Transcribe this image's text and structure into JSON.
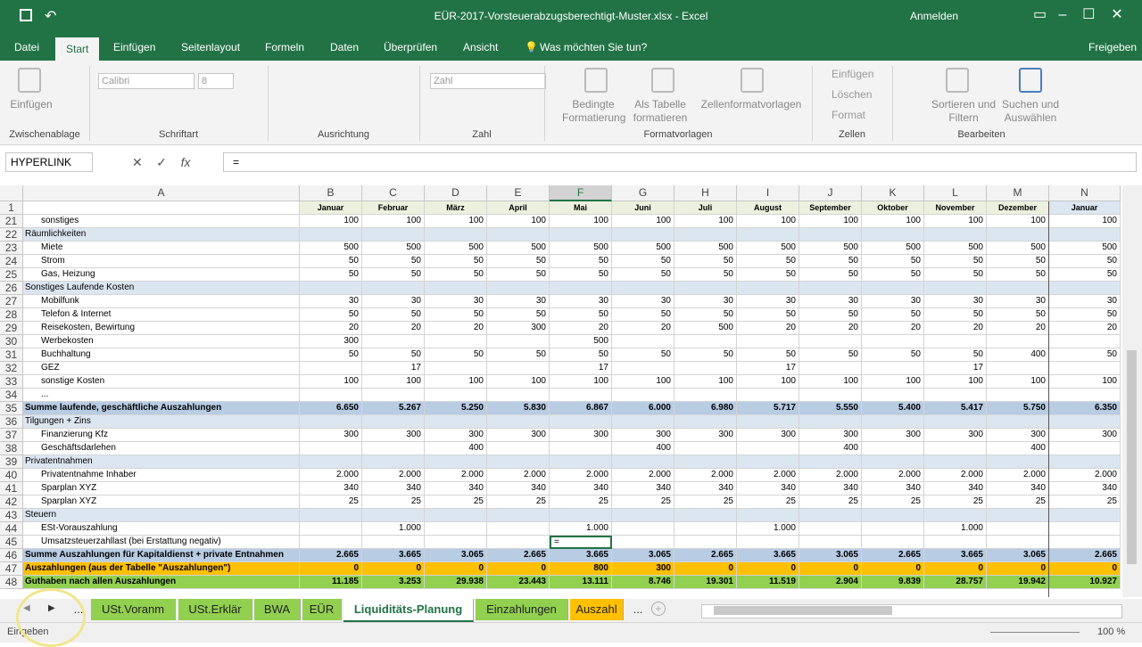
{
  "window": {
    "title": "EÜR-2017-Vorsteuerabzugsberechtigt-Muster.xlsx  -  Excel",
    "signin": "Anmelden"
  },
  "ribbon": {
    "tabs": [
      "Datei",
      "Start",
      "Einfügen",
      "Seitenlayout",
      "Formeln",
      "Daten",
      "Überprüfen",
      "Ansicht"
    ],
    "tell": "Was möchten Sie tun?",
    "share": "Freigeben",
    "buttons": [
      "Einfügen",
      "Calibri",
      "8",
      "Zahl",
      "Bedingte Formatierung",
      "Als Tabelle formatieren",
      "Zellenformatvorlagen",
      "Einfügen",
      "Löschen",
      "Format",
      "Sortieren und Filtern",
      "Suchen und Auswählen"
    ],
    "groups": [
      "Zwischenablage",
      "Schriftart",
      "Ausrichtung",
      "Zahl",
      "Formatvorlagen",
      "Zellen",
      "Bearbeiten"
    ]
  },
  "formula_bar": {
    "name_box": "HYPERLINK",
    "content": "="
  },
  "sheet": {
    "columns": [
      "A",
      "B",
      "C",
      "D",
      "E",
      "F",
      "G",
      "H",
      "I",
      "J",
      "K",
      "L",
      "M",
      "N"
    ],
    "header_row": 1,
    "months": [
      "Januar",
      "Februar",
      "März",
      "April",
      "Mai",
      "Juni",
      "Juli",
      "August",
      "September",
      "Oktober",
      "November",
      "Dezember",
      "Januar"
    ],
    "rows": [
      {
        "n": 21,
        "label": "sonstiges",
        "indent": true,
        "cells": [
          100,
          100,
          100,
          100,
          100,
          100,
          100,
          100,
          100,
          100,
          100,
          100,
          100
        ]
      },
      {
        "n": 22,
        "label": "Räumlichkeiten",
        "fill": "#dce6f1",
        "cells": []
      },
      {
        "n": 23,
        "label": "Miete",
        "indent": true,
        "cells": [
          500,
          500,
          500,
          500,
          500,
          500,
          500,
          500,
          500,
          500,
          500,
          500,
          500
        ]
      },
      {
        "n": 24,
        "label": "Strom",
        "indent": true,
        "cells": [
          50,
          50,
          50,
          50,
          50,
          50,
          50,
          50,
          50,
          50,
          50,
          50,
          50
        ]
      },
      {
        "n": 25,
        "label": "Gas, Heizung",
        "indent": true,
        "cells": [
          50,
          50,
          50,
          50,
          50,
          50,
          50,
          50,
          50,
          50,
          50,
          50,
          50
        ]
      },
      {
        "n": 26,
        "label": "Sonstiges Laufende Kosten",
        "fill": "#dce6f1",
        "cells": []
      },
      {
        "n": 27,
        "label": "Mobilfunk",
        "indent": true,
        "cells": [
          30,
          30,
          30,
          30,
          30,
          30,
          30,
          30,
          30,
          30,
          30,
          30,
          30
        ]
      },
      {
        "n": 28,
        "label": "Telefon & Internet",
        "indent": true,
        "cells": [
          50,
          50,
          50,
          50,
          50,
          50,
          50,
          50,
          50,
          50,
          50,
          50,
          50
        ]
      },
      {
        "n": 29,
        "label": "Reisekosten, Bewirtung",
        "indent": true,
        "cells": [
          20,
          20,
          20,
          300,
          20,
          20,
          500,
          20,
          20,
          20,
          20,
          20,
          20
        ]
      },
      {
        "n": 30,
        "label": "Werbekosten",
        "indent": true,
        "cells": [
          300,
          null,
          null,
          null,
          500,
          null,
          null,
          null,
          null,
          null,
          null,
          null,
          null
        ]
      },
      {
        "n": 31,
        "label": "Buchhaltung",
        "indent": true,
        "cells": [
          50,
          50,
          50,
          50,
          50,
          50,
          50,
          50,
          50,
          50,
          50,
          400,
          50
        ]
      },
      {
        "n": 32,
        "label": "GEZ",
        "indent": true,
        "cells": [
          null,
          17,
          null,
          null,
          17,
          null,
          null,
          17,
          null,
          null,
          17,
          null,
          null
        ]
      },
      {
        "n": 33,
        "label": "sonstige Kosten",
        "indent": true,
        "cells": [
          100,
          100,
          100,
          100,
          100,
          100,
          100,
          100,
          100,
          100,
          100,
          100,
          100
        ]
      },
      {
        "n": 34,
        "label": "...",
        "indent": true,
        "cells": []
      },
      {
        "n": 35,
        "label": "Summe laufende, geschäftliche Auszahlungen",
        "fill": "#b8cce4",
        "bold": true,
        "cells": [
          "6.650",
          "5.267",
          "5.250",
          "5.830",
          "6.867",
          "6.000",
          "6.980",
          "5.717",
          "5.550",
          "5.400",
          "5.417",
          "5.750",
          "6.350"
        ]
      },
      {
        "n": 36,
        "label": "Tilgungen + Zins",
        "fill": "#dce6f1",
        "cells": []
      },
      {
        "n": 37,
        "label": "Finanzierung Kfz",
        "indent": true,
        "cells": [
          300,
          300,
          300,
          300,
          300,
          300,
          300,
          300,
          300,
          300,
          300,
          300,
          300
        ]
      },
      {
        "n": 38,
        "label": "Geschäftsdarlehen",
        "indent": true,
        "cells": [
          null,
          null,
          400,
          null,
          null,
          400,
          null,
          null,
          400,
          null,
          null,
          400,
          null
        ]
      },
      {
        "n": 39,
        "label": "Privatentnahmen",
        "fill": "#dce6f1",
        "cells": []
      },
      {
        "n": 40,
        "label": "Privatentnahme Inhaber",
        "indent": true,
        "cells": [
          "2.000",
          "2.000",
          "2.000",
          "2.000",
          "2.000",
          "2.000",
          "2.000",
          "2.000",
          "2.000",
          "2.000",
          "2.000",
          "2.000",
          "2.000"
        ]
      },
      {
        "n": 41,
        "label": "Sparplan XYZ",
        "indent": true,
        "cells": [
          340,
          340,
          340,
          340,
          340,
          340,
          340,
          340,
          340,
          340,
          340,
          340,
          340
        ]
      },
      {
        "n": 42,
        "label": "Sparplan XYZ",
        "indent": true,
        "cells": [
          25,
          25,
          25,
          25,
          25,
          25,
          25,
          25,
          25,
          25,
          25,
          25,
          25
        ]
      },
      {
        "n": 43,
        "label": "Steuern",
        "fill": "#dce6f1",
        "cells": []
      },
      {
        "n": 44,
        "label": "ESt-Vorauszahlung",
        "indent": true,
        "cells": [
          null,
          "1.000",
          null,
          null,
          "1.000",
          null,
          null,
          "1.000",
          null,
          null,
          "1.000",
          null,
          null
        ]
      },
      {
        "n": 45,
        "label": "Umsatzsteuerzahllast (bei Erstattung negativ)",
        "indent": true,
        "cells": [
          null,
          null,
          null,
          null,
          "=",
          null,
          null,
          null,
          null,
          null,
          null,
          null,
          null
        ]
      },
      {
        "n": 46,
        "label": "Summe Auszahlungen für Kapitaldienst + private Entnahmen",
        "fill": "#b8cce4",
        "bold": true,
        "cells": [
          "2.665",
          "3.665",
          "3.065",
          "2.665",
          "3.665",
          "3.065",
          "2.665",
          "3.665",
          "3.065",
          "2.665",
          "3.665",
          "3.065",
          "2.665"
        ]
      },
      {
        "n": 47,
        "label": "Auszahlungen (aus der Tabelle \"Auszahlungen\")",
        "fill": "#ffc000",
        "bold": true,
        "cells": [
          0,
          0,
          0,
          0,
          800,
          300,
          0,
          0,
          0,
          0,
          0,
          0,
          0
        ]
      },
      {
        "n": 48,
        "label": "Guthaben nach allen Auszahlungen",
        "fill": "#92d050",
        "bold": true,
        "cells": [
          "11.185",
          "3.253",
          "29.938",
          "23.443",
          "13.111",
          "8.746",
          "19.301",
          "11.519",
          "2.904",
          "9.839",
          "28.757",
          "19.942",
          "10.927"
        ]
      }
    ]
  },
  "sheet_tabs": [
    "...",
    "USt.Voranm",
    "USt.Erklär",
    "BWA",
    "EÜR",
    "Liquiditäts-Planung",
    "Einzahlungen",
    "Auszahl",
    "..."
  ],
  "status": {
    "mode": "Eingeben",
    "zoom": "100 %"
  }
}
